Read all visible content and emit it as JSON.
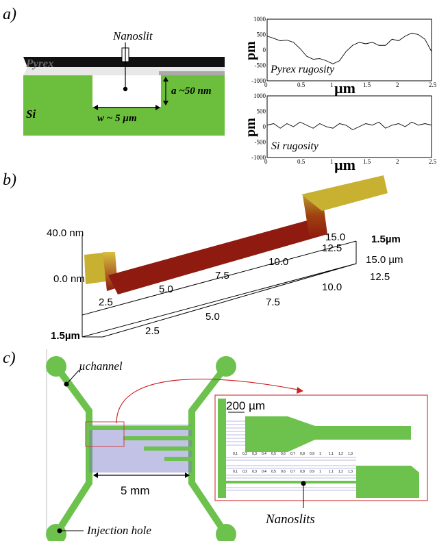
{
  "panels": {
    "a": {
      "label": "a)",
      "schematic": {
        "nanoslit_label": "Nanoslit",
        "pyrex_label": "Pyrex",
        "si_label": "Si",
        "depth_label": "a ~50 nm",
        "width_label": "w ~ 5 µm",
        "colors": {
          "silicon": "#6cbf3c",
          "pyrex": "#111111"
        }
      }
    },
    "b": {
      "label": "b)",
      "z_labels": [
        "40.0 nm",
        "0.0 nm"
      ],
      "left_axis_labels": [
        "2.5",
        "5.0",
        "7.5",
        "10.0",
        "12.5",
        "15.0"
      ],
      "left_axis_end": "1.5µm",
      "right_axis_labels": [
        "2.5",
        "5.0",
        "7.5",
        "10.0",
        "12.5",
        "15.0 µm"
      ],
      "right_axis_end": "1.5µm",
      "bottom_end": "1.5µm",
      "colors": {
        "floor": "#8e1a10",
        "rim": "#c8b030"
      }
    },
    "c": {
      "label": "c)",
      "uchannel_label": "µchannel",
      "scale_label": "5 mm",
      "injection_label": "Injection hole",
      "inset_scale_label": "200 µm",
      "nanoslits_label": "Nanoslits",
      "inset_numbers": [
        "0,1",
        "0,2",
        "0,3",
        "0,4",
        "0,5",
        "0,6",
        "0,7",
        "0,8",
        "0,9",
        "1",
        "1,1",
        "1,2",
        "1,3"
      ],
      "colors": {
        "channel": "#6dc24e",
        "frame": "#d04040",
        "grating": "#7878c8",
        "arrow": "#cc2222"
      }
    }
  },
  "chart_data": [
    {
      "type": "line",
      "title": "",
      "annotation": "Pyrex rugosity",
      "xlabel": "µm",
      "ylabel": "pm",
      "xlim": [
        0,
        2.5
      ],
      "ylim": [
        -1000,
        1000
      ],
      "x_ticks": [
        "0",
        "0.5",
        "1",
        "1.5",
        "2",
        "2.5"
      ],
      "y_ticks": [
        "1000",
        "500",
        "0",
        "-500",
        "-1000"
      ],
      "x": [
        0,
        0.1,
        0.2,
        0.3,
        0.4,
        0.5,
        0.6,
        0.7,
        0.8,
        0.9,
        1.0,
        1.1,
        1.2,
        1.3,
        1.4,
        1.5,
        1.6,
        1.7,
        1.8,
        1.9,
        2.0,
        2.1,
        2.2,
        2.3,
        2.4,
        2.5
      ],
      "series": [
        {
          "values": [
            450,
            380,
            300,
            320,
            250,
            50,
            -200,
            -300,
            -280,
            -350,
            -450,
            -350,
            -50,
            150,
            250,
            200,
            250,
            150,
            150,
            350,
            300,
            450,
            550,
            500,
            350,
            -50
          ]
        }
      ]
    },
    {
      "type": "line",
      "title": "",
      "annotation": "Si rugosity",
      "xlabel": "µm",
      "ylabel": "pm",
      "xlim": [
        0,
        2.5
      ],
      "ylim": [
        -1000,
        1000
      ],
      "x_ticks": [
        "0",
        "0.5",
        "1",
        "1.5",
        "2",
        "2.5"
      ],
      "y_ticks": [
        "1000",
        "500",
        "0",
        "-500",
        "-1000"
      ],
      "x": [
        0,
        0.1,
        0.2,
        0.3,
        0.4,
        0.5,
        0.6,
        0.7,
        0.8,
        0.9,
        1.0,
        1.1,
        1.2,
        1.3,
        1.4,
        1.5,
        1.6,
        1.7,
        1.8,
        1.9,
        2.0,
        2.1,
        2.2,
        2.3,
        2.4,
        2.5
      ],
      "series": [
        {
          "values": [
            50,
            100,
            -50,
            100,
            0,
            150,
            50,
            -50,
            100,
            0,
            -50,
            100,
            50,
            -100,
            0,
            100,
            50,
            150,
            -50,
            50,
            100,
            0,
            150,
            50,
            100,
            50
          ]
        }
      ]
    }
  ]
}
